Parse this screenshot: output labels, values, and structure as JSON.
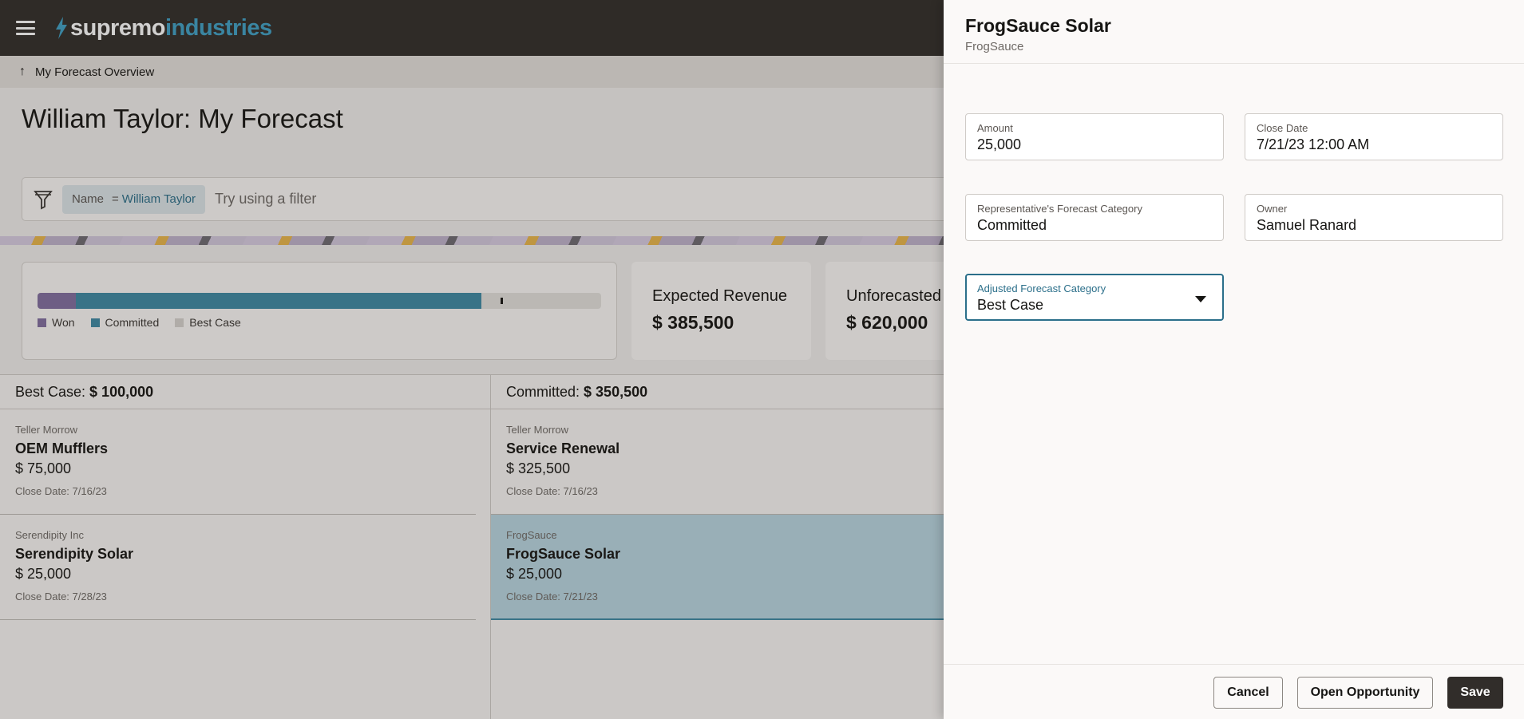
{
  "header": {
    "brand_part1": "supremo",
    "brand_part2": "industries"
  },
  "breadcrumb": {
    "label": "My Forecast Overview"
  },
  "page": {
    "title": "William Taylor: My Forecast"
  },
  "filter": {
    "chip_field": "Name",
    "chip_operator": "=",
    "chip_value": "William Taylor",
    "placeholder": "Try using a filter"
  },
  "summary": {
    "progress": {
      "won_fraction": 0.068,
      "committed_fraction": 0.72,
      "marker_fraction": 0.822
    },
    "legend": [
      "Won",
      "Committed",
      "Best Case"
    ],
    "colors": {
      "won": "#826fa0",
      "committed": "#3e8aa4",
      "best_case": "#e5e2de"
    },
    "metrics": [
      {
        "label": "Expected Revenue",
        "value": "$ 385,500"
      },
      {
        "label": "Unforecasted",
        "value": "$ 620,000"
      }
    ]
  },
  "columns": [
    {
      "label": "Best Case:",
      "total": "$ 100,000",
      "items": [
        {
          "account": "Teller Morrow",
          "name": "OEM Mufflers",
          "amount": "$ 75,000",
          "close": "Close Date: 7/16/23"
        },
        {
          "account": "Serendipity Inc",
          "name": "Serendipity Solar",
          "amount": "$ 25,000",
          "close": "Close Date: 7/28/23"
        }
      ]
    },
    {
      "label": "Committed:",
      "total": "$ 350,500",
      "items": [
        {
          "account": "Teller Morrow",
          "name": "Service Renewal",
          "amount": "$ 325,500",
          "close": "Close Date: 7/16/23"
        },
        {
          "account": "FrogSauce",
          "name": "FrogSauce Solar",
          "amount": "$ 25,000",
          "close": "Close Date: 7/21/23"
        }
      ]
    }
  ],
  "drawer": {
    "title": "FrogSauce Solar",
    "subtitle": "FrogSauce",
    "fields": {
      "amount": {
        "label": "Amount",
        "value": "25,000"
      },
      "close_date": {
        "label": "Close Date",
        "value": "7/21/23 12:00 AM"
      },
      "rep_category": {
        "label": "Representative's Forecast Category",
        "value": "Committed"
      },
      "owner": {
        "label": "Owner",
        "value": "Samuel Ranard"
      },
      "adjusted_category": {
        "label": "Adjusted Forecast Category",
        "value": "Best Case"
      }
    },
    "buttons": {
      "cancel": "Cancel",
      "open": "Open Opportunity",
      "save": "Save"
    }
  }
}
